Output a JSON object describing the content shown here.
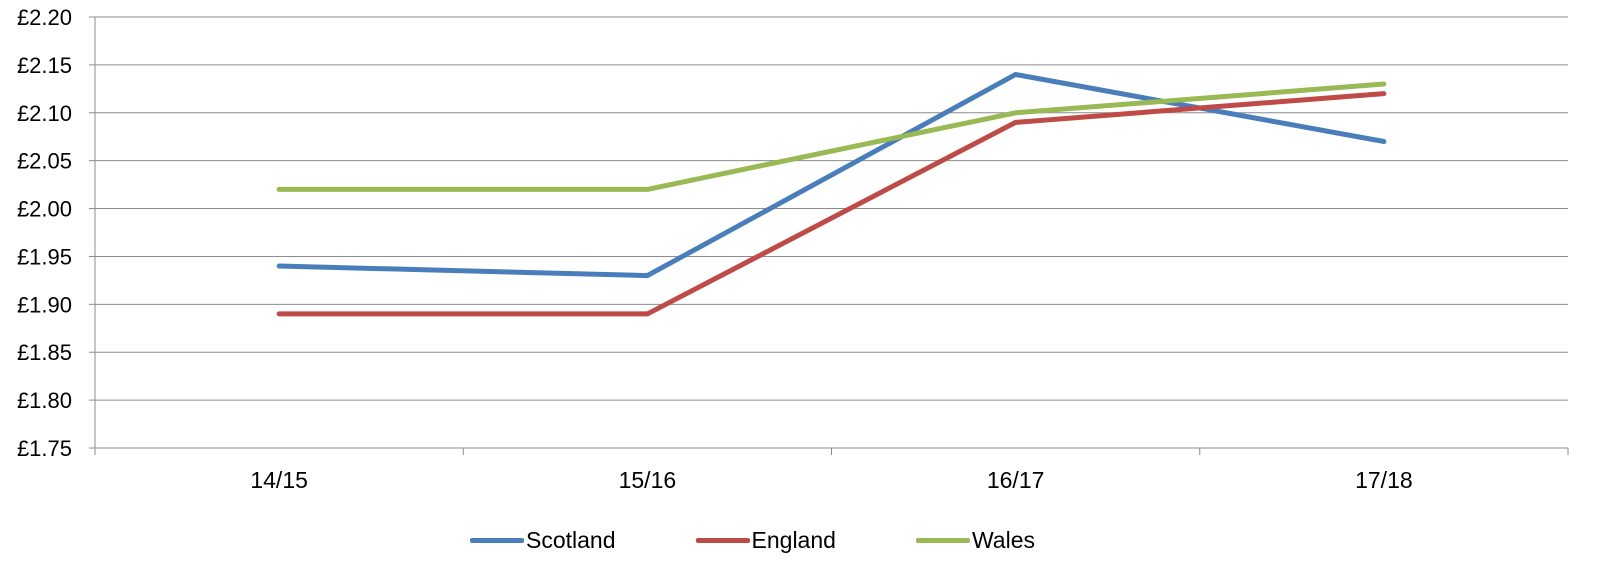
{
  "chart_data": {
    "type": "line",
    "categories": [
      "14/15",
      "15/16",
      "16/17",
      "17/18"
    ],
    "series": [
      {
        "name": "Scotland",
        "color": "#4a7ebb",
        "values": [
          1.94,
          1.93,
          2.14,
          2.07
        ]
      },
      {
        "name": "England",
        "color": "#be4b48",
        "values": [
          1.89,
          1.89,
          2.09,
          2.12
        ]
      },
      {
        "name": "Wales",
        "color": "#98b954",
        "values": [
          2.02,
          2.02,
          2.1,
          2.13
        ]
      }
    ],
    "yticks": [
      "£1.75",
      "£1.80",
      "£1.85",
      "£1.90",
      "£1.95",
      "£2.00",
      "£2.05",
      "£2.10",
      "£2.15",
      "£2.20"
    ],
    "ylim": [
      1.75,
      2.2
    ],
    "title": "",
    "xlabel": "",
    "ylabel": "",
    "grid": "horizontal",
    "legend_position": "bottom"
  }
}
